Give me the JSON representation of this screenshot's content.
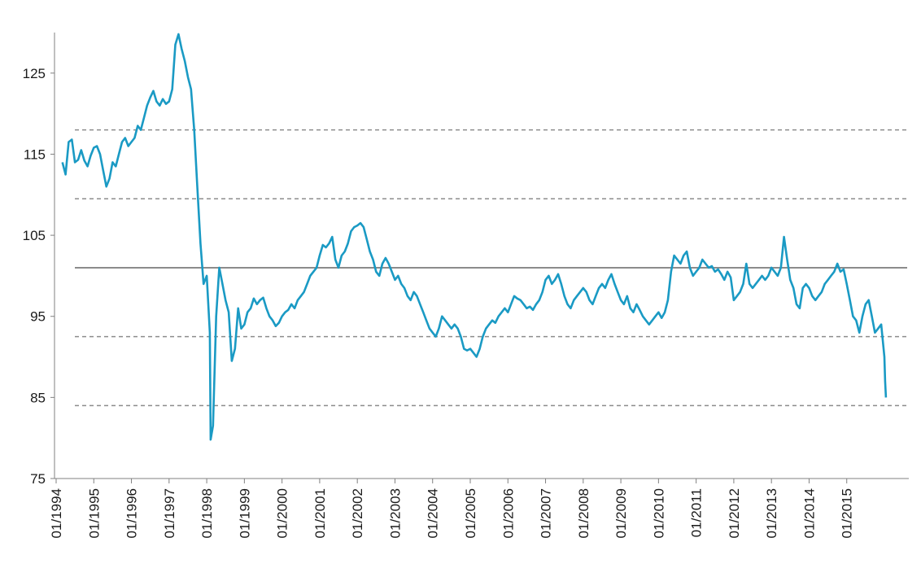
{
  "chart_data": {
    "type": "line",
    "title": "",
    "xlabel": "",
    "ylabel": "",
    "xlim": [
      "1994-01",
      "2016-01"
    ],
    "ylim": [
      75,
      130
    ],
    "y_ticks": [
      75,
      85,
      95,
      105,
      115,
      125
    ],
    "y_tick_labels": [
      "75",
      "85",
      "95",
      "105",
      "115",
      "125"
    ],
    "x_tick_labels": [
      "01/1994",
      "01/1995",
      "01/1996",
      "01/1997",
      "01/1998",
      "01/1999",
      "01/2000",
      "01/2001",
      "01/2002",
      "01/2003",
      "01/2004",
      "01/2005",
      "01/2006",
      "01/2007",
      "01/2008",
      "01/2009",
      "01/2010",
      "01/2011",
      "01/2012",
      "01/2013",
      "01/2014",
      "01/2015"
    ],
    "grid": false,
    "legend": "none",
    "reference_lines": [
      {
        "y": 101.0,
        "style": "solid",
        "color": "#8c8c8c"
      },
      {
        "y": 118.0,
        "style": "dashed",
        "color": "#8c8c8c"
      },
      {
        "y": 109.5,
        "style": "dashed",
        "color": "#8c8c8c"
      },
      {
        "y": 92.5,
        "style": "dashed",
        "color": "#8c8c8c"
      },
      {
        "y": 84.0,
        "style": "dashed",
        "color": "#8c8c8c"
      }
    ],
    "series": [
      {
        "color": "#1a9ac4",
        "points": [
          [
            "1994-03",
            114
          ],
          [
            "1994-04",
            112.5
          ],
          [
            "1994-05",
            116.5
          ],
          [
            "1994-06",
            116.8
          ],
          [
            "1994-07",
            114
          ],
          [
            "1994-08",
            114.3
          ],
          [
            "1994-09",
            115.5
          ],
          [
            "1994-10",
            114.2
          ],
          [
            "1994-11",
            113.5
          ],
          [
            "1994-12",
            114.8
          ],
          [
            "1995-01",
            115.8
          ],
          [
            "1995-02",
            116
          ],
          [
            "1995-03",
            115
          ],
          [
            "1995-04",
            113
          ],
          [
            "1995-05",
            111
          ],
          [
            "1995-06",
            112
          ],
          [
            "1995-07",
            114
          ],
          [
            "1995-08",
            113.5
          ],
          [
            "1995-09",
            115
          ],
          [
            "1995-10",
            116.5
          ],
          [
            "1995-11",
            117
          ],
          [
            "1995-12",
            116
          ],
          [
            "1996-01",
            116.5
          ],
          [
            "1996-02",
            117
          ],
          [
            "1996-03",
            118.5
          ],
          [
            "1996-04",
            118
          ],
          [
            "1996-05",
            119.5
          ],
          [
            "1996-06",
            121
          ],
          [
            "1996-07",
            122
          ],
          [
            "1996-08",
            122.8
          ],
          [
            "1996-09",
            121.5
          ],
          [
            "1996-10",
            121
          ],
          [
            "1996-11",
            121.8
          ],
          [
            "1996-12",
            121.2
          ],
          [
            "1997-01",
            121.5
          ],
          [
            "1997-02",
            123
          ],
          [
            "1997-03",
            128.5
          ],
          [
            "1997-04",
            129.8
          ],
          [
            "1997-05",
            128
          ],
          [
            "1997-06",
            126.5
          ],
          [
            "1997-07",
            124.5
          ],
          [
            "1997-08",
            123
          ],
          [
            "1997-09",
            118
          ],
          [
            "1997-10",
            111
          ],
          [
            "1997-11",
            104
          ],
          [
            "1997-12",
            99
          ],
          [
            "1998-01",
            100
          ],
          [
            "1998-02",
            93
          ],
          [
            "1998-02",
            79.8
          ],
          [
            "1998-03",
            81.5
          ],
          [
            "1998-04",
            95
          ],
          [
            "1998-05",
            101
          ],
          [
            "1998-06",
            99
          ],
          [
            "1998-07",
            97
          ],
          [
            "1998-08",
            95.5
          ],
          [
            "1998-09",
            89.5
          ],
          [
            "1998-10",
            91
          ],
          [
            "1998-11",
            96
          ],
          [
            "1998-12",
            93.5
          ],
          [
            "1999-01",
            94
          ],
          [
            "1999-02",
            95.5
          ],
          [
            "1999-03",
            96
          ],
          [
            "1999-04",
            97.2
          ],
          [
            "1999-05",
            96.5
          ],
          [
            "1999-06",
            97
          ],
          [
            "1999-07",
            97.3
          ],
          [
            "1999-08",
            96
          ],
          [
            "1999-09",
            95
          ],
          [
            "1999-10",
            94.5
          ],
          [
            "1999-11",
            93.8
          ],
          [
            "1999-12",
            94.2
          ],
          [
            "2000-01",
            95
          ],
          [
            "2000-02",
            95.5
          ],
          [
            "2000-03",
            95.8
          ],
          [
            "2000-04",
            96.5
          ],
          [
            "2000-05",
            96
          ],
          [
            "2000-06",
            97
          ],
          [
            "2000-07",
            97.5
          ],
          [
            "2000-08",
            98
          ],
          [
            "2000-09",
            99
          ],
          [
            "2000-10",
            100
          ],
          [
            "2000-11",
            100.5
          ],
          [
            "2000-12",
            101
          ],
          [
            "2001-01",
            102.5
          ],
          [
            "2001-02",
            103.8
          ],
          [
            "2001-03",
            103.5
          ],
          [
            "2001-04",
            104
          ],
          [
            "2001-05",
            104.8
          ],
          [
            "2001-06",
            102
          ],
          [
            "2001-07",
            101
          ],
          [
            "2001-08",
            102.5
          ],
          [
            "2001-09",
            103
          ],
          [
            "2001-10",
            104
          ],
          [
            "2001-11",
            105.5
          ],
          [
            "2001-12",
            106
          ],
          [
            "2002-01",
            106.2
          ],
          [
            "2002-02",
            106.5
          ],
          [
            "2002-03",
            106
          ],
          [
            "2002-04",
            104.5
          ],
          [
            "2002-05",
            103
          ],
          [
            "2002-06",
            102
          ],
          [
            "2002-07",
            100.5
          ],
          [
            "2002-08",
            100
          ],
          [
            "2002-09",
            101.5
          ],
          [
            "2002-10",
            102.2
          ],
          [
            "2002-11",
            101.5
          ],
          [
            "2002-12",
            100.5
          ],
          [
            "2003-01",
            99.5
          ],
          [
            "2003-02",
            100
          ],
          [
            "2003-03",
            99
          ],
          [
            "2003-04",
            98.5
          ],
          [
            "2003-05",
            97.5
          ],
          [
            "2003-06",
            97
          ],
          [
            "2003-07",
            98
          ],
          [
            "2003-08",
            97.5
          ],
          [
            "2003-09",
            96.5
          ],
          [
            "2003-10",
            95.5
          ],
          [
            "2003-11",
            94.5
          ],
          [
            "2003-12",
            93.5
          ],
          [
            "2004-01",
            93
          ],
          [
            "2004-02",
            92.5
          ],
          [
            "2004-03",
            93.5
          ],
          [
            "2004-04",
            95
          ],
          [
            "2004-05",
            94.5
          ],
          [
            "2004-06",
            94
          ],
          [
            "2004-07",
            93.5
          ],
          [
            "2004-08",
            94
          ],
          [
            "2004-09",
            93.5
          ],
          [
            "2004-10",
            92.5
          ],
          [
            "2004-11",
            91
          ],
          [
            "2004-12",
            90.8
          ],
          [
            "2005-01",
            91
          ],
          [
            "2005-02",
            90.5
          ],
          [
            "2005-03",
            90
          ],
          [
            "2005-04",
            91
          ],
          [
            "2005-05",
            92.5
          ],
          [
            "2005-06",
            93.5
          ],
          [
            "2005-07",
            94
          ],
          [
            "2005-08",
            94.5
          ],
          [
            "2005-09",
            94.2
          ],
          [
            "2005-10",
            95
          ],
          [
            "2005-11",
            95.5
          ],
          [
            "2005-12",
            96
          ],
          [
            "2006-01",
            95.5
          ],
          [
            "2006-02",
            96.5
          ],
          [
            "2006-03",
            97.5
          ],
          [
            "2006-04",
            97.2
          ],
          [
            "2006-05",
            97
          ],
          [
            "2006-06",
            96.5
          ],
          [
            "2006-07",
            96
          ],
          [
            "2006-08",
            96.2
          ],
          [
            "2006-09",
            95.8
          ],
          [
            "2006-10",
            96.5
          ],
          [
            "2006-11",
            97
          ],
          [
            "2006-12",
            98
          ],
          [
            "2007-01",
            99.5
          ],
          [
            "2007-02",
            100
          ],
          [
            "2007-03",
            99
          ],
          [
            "2007-04",
            99.5
          ],
          [
            "2007-05",
            100.2
          ],
          [
            "2007-06",
            99
          ],
          [
            "2007-07",
            97.5
          ],
          [
            "2007-08",
            96.5
          ],
          [
            "2007-09",
            96
          ],
          [
            "2007-10",
            97
          ],
          [
            "2007-11",
            97.5
          ],
          [
            "2007-12",
            98
          ],
          [
            "2008-01",
            98.5
          ],
          [
            "2008-02",
            98
          ],
          [
            "2008-03",
            97
          ],
          [
            "2008-04",
            96.5
          ],
          [
            "2008-05",
            97.5
          ],
          [
            "2008-06",
            98.5
          ],
          [
            "2008-07",
            99
          ],
          [
            "2008-08",
            98.5
          ],
          [
            "2008-09",
            99.5
          ],
          [
            "2008-10",
            100.2
          ],
          [
            "2008-11",
            99
          ],
          [
            "2008-12",
            98
          ],
          [
            "2009-01",
            97
          ],
          [
            "2009-02",
            96.5
          ],
          [
            "2009-03",
            97.5
          ],
          [
            "2009-04",
            96
          ],
          [
            "2009-05",
            95.5
          ],
          [
            "2009-06",
            96.5
          ],
          [
            "2009-07",
            95.8
          ],
          [
            "2009-08",
            95
          ],
          [
            "2009-09",
            94.5
          ],
          [
            "2009-10",
            94
          ],
          [
            "2009-11",
            94.5
          ],
          [
            "2009-12",
            95
          ],
          [
            "2010-01",
            95.5
          ],
          [
            "2010-02",
            94.8
          ],
          [
            "2010-03",
            95.5
          ],
          [
            "2010-04",
            97
          ],
          [
            "2010-05",
            100.5
          ],
          [
            "2010-06",
            102.5
          ],
          [
            "2010-07",
            102
          ],
          [
            "2010-08",
            101.5
          ],
          [
            "2010-09",
            102.5
          ],
          [
            "2010-10",
            103
          ],
          [
            "2010-11",
            101
          ],
          [
            "2010-12",
            100
          ],
          [
            "2011-01",
            100.5
          ],
          [
            "2011-02",
            101
          ],
          [
            "2011-03",
            102
          ],
          [
            "2011-04",
            101.5
          ],
          [
            "2011-05",
            101
          ],
          [
            "2011-06",
            101.2
          ],
          [
            "2011-07",
            100.5
          ],
          [
            "2011-08",
            100.8
          ],
          [
            "2011-09",
            100.2
          ],
          [
            "2011-10",
            99.5
          ],
          [
            "2011-11",
            100.5
          ],
          [
            "2011-12",
            99.8
          ],
          [
            "2012-01",
            97
          ],
          [
            "2012-02",
            97.5
          ],
          [
            "2012-03",
            98
          ],
          [
            "2012-04",
            99
          ],
          [
            "2012-05",
            101.5
          ],
          [
            "2012-06",
            99
          ],
          [
            "2012-07",
            98.5
          ],
          [
            "2012-08",
            99
          ],
          [
            "2012-09",
            99.5
          ],
          [
            "2012-10",
            100
          ],
          [
            "2012-11",
            99.5
          ],
          [
            "2012-12",
            100
          ],
          [
            "2013-01",
            101
          ],
          [
            "2013-02",
            100.5
          ],
          [
            "2013-03",
            100
          ],
          [
            "2013-04",
            101
          ],
          [
            "2013-05",
            104.8
          ],
          [
            "2013-06",
            102
          ],
          [
            "2013-07",
            99.5
          ],
          [
            "2013-08",
            98.5
          ],
          [
            "2013-09",
            96.5
          ],
          [
            "2013-10",
            96
          ],
          [
            "2013-11",
            98.5
          ],
          [
            "2013-12",
            99
          ],
          [
            "2014-01",
            98.5
          ],
          [
            "2014-02",
            97.5
          ],
          [
            "2014-03",
            97
          ],
          [
            "2014-04",
            97.5
          ],
          [
            "2014-05",
            98
          ],
          [
            "2014-06",
            99
          ],
          [
            "2014-07",
            99.5
          ],
          [
            "2014-08",
            100
          ],
          [
            "2014-09",
            100.5
          ],
          [
            "2014-10",
            101.5
          ],
          [
            "2014-11",
            100.5
          ],
          [
            "2014-12",
            100.8
          ],
          [
            "2015-01",
            99
          ],
          [
            "2015-02",
            97
          ],
          [
            "2015-03",
            95
          ],
          [
            "2015-04",
            94.5
          ],
          [
            "2015-05",
            93
          ],
          [
            "2015-06",
            95
          ],
          [
            "2015-07",
            96.5
          ],
          [
            "2015-08",
            97
          ],
          [
            "2015-09",
            95
          ],
          [
            "2015-10",
            93
          ],
          [
            "2015-11",
            93.5
          ],
          [
            "2015-12",
            94
          ],
          [
            "2016-01",
            90
          ],
          [
            "2016-01",
            87
          ],
          [
            "2016-01",
            85
          ]
        ]
      }
    ]
  }
}
